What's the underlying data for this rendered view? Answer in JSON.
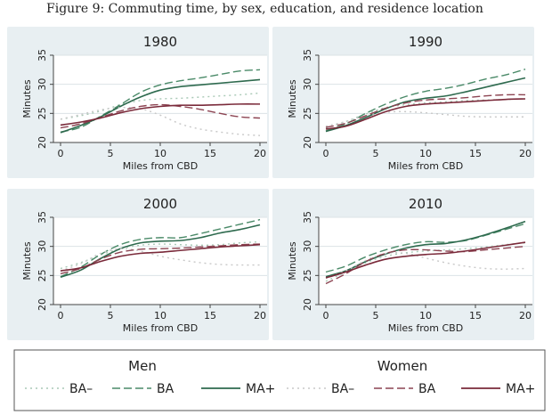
{
  "figure": {
    "title": "Figure 9: Commuting time, by sex, education, and residence location"
  },
  "colors": {
    "men_ba_minus": "#a9c9b6",
    "men_ba": "#4a8a68",
    "men_ma_plus": "#2e6a4e",
    "women_ba_minus": "#c8c8c8",
    "women_ba": "#8c4452",
    "women_ma_plus": "#7a2a3a"
  },
  "legend": {
    "group_labels": [
      "Men",
      "Women"
    ],
    "entries": [
      {
        "label": "BA–",
        "series": "men_ba_minus"
      },
      {
        "label": "BA",
        "series": "men_ba"
      },
      {
        "label": "MA+",
        "series": "men_ma_plus"
      },
      {
        "label": "BA–",
        "series": "women_ba_minus"
      },
      {
        "label": "BA",
        "series": "women_ba"
      },
      {
        "label": "MA+",
        "series": "women_ma_plus"
      }
    ]
  },
  "chart_data": [
    {
      "type": "line",
      "title": "1980",
      "xlabel": "Miles from CBD",
      "ylabel": "Minutes",
      "xlim": [
        0,
        20
      ],
      "ylim": [
        20,
        35
      ],
      "xticks": [
        0,
        5,
        10,
        15,
        20
      ],
      "yticks": [
        20,
        25,
        30,
        35
      ],
      "x": [
        0,
        2,
        4,
        6,
        8,
        10,
        12,
        14,
        16,
        18,
        20
      ],
      "series": [
        {
          "name": "men_ba_minus",
          "values": [
            24.0,
            24.6,
            25.4,
            26.5,
            27.2,
            27.5,
            27.6,
            27.8,
            28.0,
            28.2,
            28.5
          ]
        },
        {
          "name": "men_ba",
          "values": [
            21.8,
            22.6,
            24.5,
            26.5,
            28.6,
            29.9,
            30.6,
            31.1,
            31.7,
            32.3,
            32.5
          ]
        },
        {
          "name": "men_ma_plus",
          "values": [
            21.7,
            22.9,
            24.4,
            26.2,
            27.8,
            29.0,
            29.6,
            29.9,
            30.2,
            30.5,
            30.8
          ]
        },
        {
          "name": "women_ba_minus",
          "values": [
            24.0,
            24.8,
            25.6,
            26.0,
            25.8,
            24.7,
            23.2,
            22.3,
            21.8,
            21.4,
            21.2
          ]
        },
        {
          "name": "women_ba",
          "values": [
            22.5,
            23.2,
            24.3,
            25.4,
            26.2,
            26.5,
            26.2,
            25.7,
            25.0,
            24.4,
            24.2
          ]
        },
        {
          "name": "women_ma_plus",
          "values": [
            23.0,
            23.5,
            24.2,
            25.1,
            25.8,
            26.2,
            26.4,
            26.4,
            26.5,
            26.6,
            26.6
          ]
        }
      ]
    },
    {
      "type": "line",
      "title": "1990",
      "xlabel": "Miles from CBD",
      "ylabel": "Minutes",
      "xlim": [
        0,
        20
      ],
      "ylim": [
        20,
        35
      ],
      "xticks": [
        0,
        5,
        10,
        15,
        20
      ],
      "yticks": [
        20,
        25,
        30,
        35
      ],
      "x": [
        0,
        2,
        4,
        6,
        8,
        10,
        12,
        14,
        16,
        18,
        20
      ],
      "series": [
        {
          "name": "men_ba_minus",
          "values": [
            22.5,
            23.6,
            24.9,
            26.0,
            26.5,
            26.8,
            27.0,
            27.2,
            27.3,
            27.4,
            27.5
          ]
        },
        {
          "name": "men_ba",
          "values": [
            22.0,
            23.2,
            25.0,
            26.6,
            27.9,
            28.8,
            29.3,
            30.0,
            30.9,
            31.6,
            32.6
          ]
        },
        {
          "name": "men_ma_plus",
          "values": [
            21.9,
            22.9,
            24.3,
            25.8,
            27.0,
            27.6,
            28.0,
            28.7,
            29.5,
            30.3,
            31.1
          ]
        },
        {
          "name": "women_ba_minus",
          "values": [
            22.8,
            23.6,
            24.6,
            25.2,
            25.3,
            25.1,
            24.8,
            24.5,
            24.4,
            24.4,
            24.4
          ]
        },
        {
          "name": "women_ba",
          "values": [
            22.6,
            23.3,
            24.6,
            25.9,
            26.8,
            27.3,
            27.5,
            27.7,
            28.0,
            28.2,
            28.2
          ]
        },
        {
          "name": "women_ma_plus",
          "values": [
            22.3,
            22.8,
            24.0,
            25.3,
            26.2,
            26.6,
            26.8,
            27.0,
            27.2,
            27.4,
            27.5
          ]
        }
      ]
    },
    {
      "type": "line",
      "title": "2000",
      "xlabel": "Miles from CBD",
      "ylabel": "Minutes",
      "xlim": [
        0,
        20
      ],
      "ylim": [
        20,
        35
      ],
      "xticks": [
        0,
        5,
        10,
        15,
        20
      ],
      "yticks": [
        20,
        25,
        30,
        35
      ],
      "x": [
        0,
        2,
        4,
        6,
        8,
        10,
        12,
        14,
        16,
        18,
        20
      ],
      "series": [
        {
          "name": "men_ba_minus",
          "values": [
            26.2,
            27.2,
            28.5,
            29.6,
            30.2,
            30.4,
            30.3,
            30.2,
            30.3,
            30.6,
            30.8
          ]
        },
        {
          "name": "men_ba",
          "values": [
            24.8,
            26.4,
            28.6,
            30.3,
            31.2,
            31.5,
            31.5,
            32.2,
            33.0,
            33.8,
            34.6
          ]
        },
        {
          "name": "men_ma_plus",
          "values": [
            24.7,
            25.9,
            27.9,
            29.6,
            30.6,
            30.9,
            31.0,
            31.5,
            32.3,
            32.9,
            33.7
          ]
        },
        {
          "name": "women_ba_minus",
          "values": [
            25.8,
            27.0,
            28.8,
            29.6,
            29.2,
            28.3,
            27.7,
            27.2,
            26.9,
            26.8,
            26.8
          ]
        },
        {
          "name": "women_ba",
          "values": [
            25.3,
            26.2,
            27.8,
            29.0,
            29.5,
            29.6,
            29.7,
            29.9,
            30.1,
            30.3,
            30.4
          ]
        },
        {
          "name": "women_ma_plus",
          "values": [
            25.8,
            26.3,
            27.4,
            28.3,
            28.8,
            29.0,
            29.3,
            29.6,
            29.9,
            30.1,
            30.3
          ]
        }
      ]
    },
    {
      "type": "line",
      "title": "2010",
      "xlabel": "Miles from CBD",
      "ylabel": "Minutes",
      "xlim": [
        0,
        20
      ],
      "ylim": [
        20,
        35
      ],
      "xticks": [
        0,
        5,
        10,
        15,
        20
      ],
      "yticks": [
        20,
        25,
        30,
        35
      ],
      "x": [
        0,
        2,
        4,
        6,
        8,
        10,
        12,
        14,
        16,
        18,
        20
      ],
      "series": [
        {
          "name": "men_ba_minus",
          "values": [
            24.0,
            25.6,
            27.2,
            28.3,
            28.9,
            29.2,
            29.4,
            29.6,
            29.9,
            30.3,
            30.6
          ]
        },
        {
          "name": "men_ba",
          "values": [
            25.6,
            26.6,
            28.2,
            29.4,
            30.3,
            30.8,
            30.7,
            31.0,
            31.9,
            32.9,
            33.9
          ]
        },
        {
          "name": "men_ma_plus",
          "values": [
            24.8,
            25.8,
            27.4,
            28.7,
            29.7,
            30.3,
            30.5,
            31.1,
            32.0,
            33.1,
            34.3
          ]
        },
        {
          "name": "women_ba_minus",
          "values": [
            24.5,
            25.8,
            27.6,
            28.8,
            28.8,
            28.0,
            27.2,
            26.6,
            26.2,
            26.1,
            26.2
          ]
        },
        {
          "name": "women_ba",
          "values": [
            23.6,
            25.3,
            27.4,
            28.8,
            29.4,
            29.4,
            29.2,
            29.1,
            29.4,
            29.7,
            30.0
          ]
        },
        {
          "name": "women_ma_plus",
          "values": [
            24.6,
            25.6,
            26.8,
            27.8,
            28.3,
            28.6,
            28.8,
            29.2,
            29.7,
            30.2,
            30.7
          ]
        }
      ]
    }
  ]
}
